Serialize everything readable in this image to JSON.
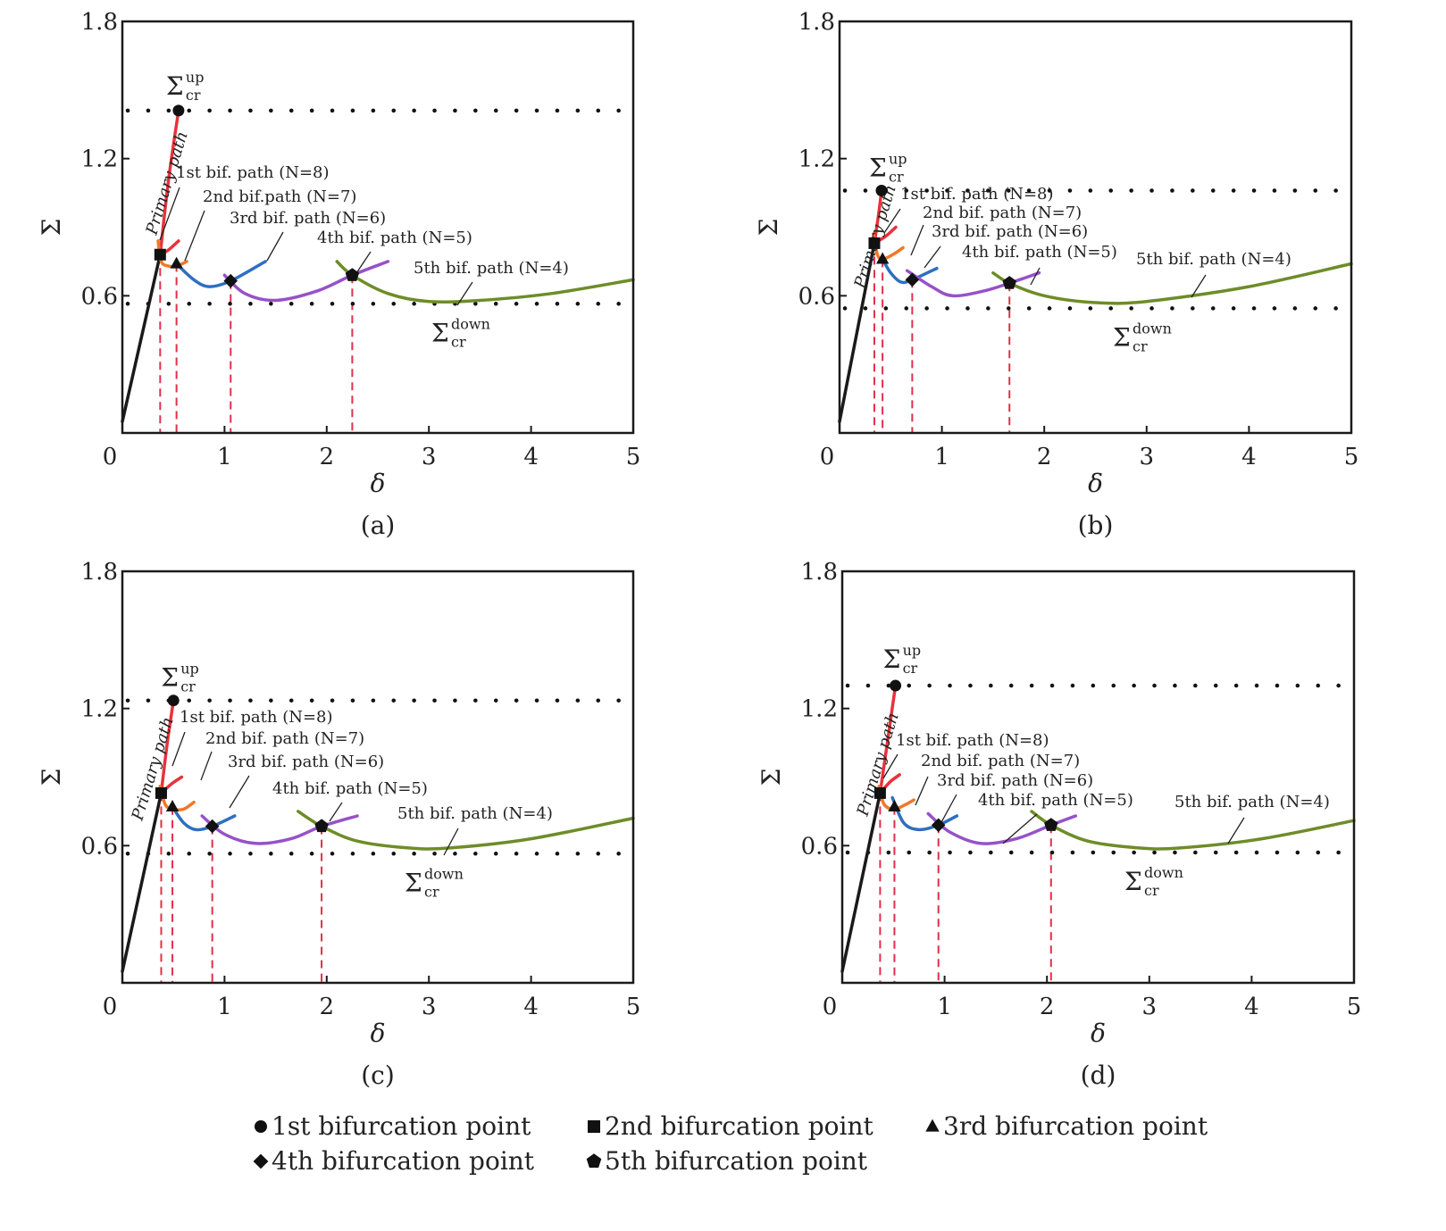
{
  "figure": {
    "legend": [
      {
        "marker": "circle",
        "label": "1st bifurcation point"
      },
      {
        "marker": "square",
        "label": "2nd bifurcation point"
      },
      {
        "marker": "triangle",
        "label": "3rd bifurcation point"
      },
      {
        "marker": "diamond",
        "label": "4th bifurcation point"
      },
      {
        "marker": "pentagon",
        "label": "5th bifurcation point"
      }
    ],
    "colors": {
      "primary": "#1a1a1a",
      "path1": "#e8323c",
      "path2": "#f07828",
      "path3": "#2e6fc0",
      "path4": "#9652c8",
      "path5": "#6e8c28",
      "dropline": "#e0304a",
      "critical": "#111111"
    },
    "annotation_labels": {
      "primary": "Primary path",
      "sigma_up_main": "Σ",
      "sigma_up_sup": "up",
      "sigma_sub": "cr",
      "sigma_down_sup": "down"
    }
  },
  "chart_data": [
    {
      "type": "line",
      "panel": "(a)",
      "xlabel": "δ",
      "ylabel": "Σ",
      "xlim": [
        0,
        5
      ],
      "ylim": [
        0,
        1.8
      ],
      "xticks": [
        "0",
        "1",
        "2",
        "3",
        "4",
        "5"
      ],
      "yticks": [
        "0.6",
        "1.2",
        "1.8"
      ],
      "sigma_up": 1.41,
      "sigma_down": 0.565,
      "bifurcation_points": [
        {
          "order": 1,
          "marker": "circle",
          "x": 0.55,
          "y": 1.41
        },
        {
          "order": 2,
          "marker": "square",
          "x": 0.37,
          "y": 0.78
        },
        {
          "order": 3,
          "marker": "triangle",
          "x": 0.53,
          "y": 0.74
        },
        {
          "order": 4,
          "marker": "diamond",
          "x": 1.06,
          "y": 0.665
        },
        {
          "order": 5,
          "marker": "pentagon",
          "x": 2.25,
          "y": 0.69
        }
      ],
      "series": [
        {
          "name": "Primary path",
          "color_key": "primary",
          "x": [
            0,
            0.37
          ],
          "y": [
            0.05,
            0.78
          ]
        },
        {
          "name": "Primary path (upper)",
          "color_key": "path1",
          "x": [
            0.37,
            0.45,
            0.55
          ],
          "y": [
            0.78,
            1.1,
            1.41
          ]
        },
        {
          "name": "1st bif. path (N=8)",
          "color_key": "path1",
          "x": [
            0.37,
            0.45,
            0.55
          ],
          "y": [
            0.78,
            0.8,
            0.84
          ]
        },
        {
          "name": "2nd bif.path (N=7)",
          "color_key": "path2",
          "x": [
            0.35,
            0.38,
            0.45,
            0.53,
            0.63
          ],
          "y": [
            0.84,
            0.75,
            0.73,
            0.73,
            0.75
          ]
        },
        {
          "name": "3rd bif. path (N=6)",
          "color_key": "path3",
          "x": [
            0.53,
            0.7,
            0.85,
            1.06,
            1.4
          ],
          "y": [
            0.74,
            0.67,
            0.64,
            0.665,
            0.75
          ]
        },
        {
          "name": "4th bif. path (N=5)",
          "color_key": "path4",
          "x": [
            1.0,
            1.2,
            1.5,
            1.9,
            2.25,
            2.6
          ],
          "y": [
            0.69,
            0.61,
            0.58,
            0.62,
            0.69,
            0.75
          ]
        },
        {
          "name": "5th bif. path (N=4)",
          "color_key": "path5",
          "x": [
            2.1,
            2.25,
            2.6,
            3.0,
            3.5,
            4.2,
            5.0
          ],
          "y": [
            0.75,
            0.69,
            0.61,
            0.575,
            0.58,
            0.61,
            0.67
          ]
        }
      ],
      "annotations": [
        {
          "text": "1st bif. path (N=8)",
          "series": 1
        },
        {
          "text": "2nd bif.path (N=7)",
          "series": 2
        },
        {
          "text": "3rd bif. path (N=6)",
          "series": 3
        },
        {
          "text": "4th bif. path (N=5)",
          "series": 4
        },
        {
          "text": "5th bif. path (N=4)",
          "series": 5
        }
      ]
    },
    {
      "type": "line",
      "panel": "(b)",
      "xlabel": "δ",
      "ylabel": "Σ",
      "xlim": [
        0,
        5
      ],
      "ylim": [
        0,
        1.8
      ],
      "xticks": [
        "0",
        "1",
        "2",
        "3",
        "4",
        "5"
      ],
      "yticks": [
        "0.6",
        "1.2",
        "1.8"
      ],
      "sigma_up": 1.06,
      "sigma_down": 0.545,
      "bifurcation_points": [
        {
          "order": 1,
          "marker": "circle",
          "x": 0.41,
          "y": 1.06
        },
        {
          "order": 2,
          "marker": "square",
          "x": 0.34,
          "y": 0.83
        },
        {
          "order": 3,
          "marker": "triangle",
          "x": 0.42,
          "y": 0.76
        },
        {
          "order": 4,
          "marker": "diamond",
          "x": 0.71,
          "y": 0.67
        },
        {
          "order": 5,
          "marker": "pentagon",
          "x": 1.66,
          "y": 0.655
        }
      ],
      "series": [
        {
          "name": "Primary path",
          "color_key": "primary",
          "x": [
            0,
            0.34
          ],
          "y": [
            0.05,
            0.83
          ]
        },
        {
          "name": "Primary path (upper)",
          "color_key": "path1",
          "x": [
            0.34,
            0.38,
            0.41
          ],
          "y": [
            0.83,
            0.95,
            1.06
          ]
        },
        {
          "name": "1st bif. path (N=8)",
          "color_key": "path1",
          "x": [
            0.34,
            0.45,
            0.55
          ],
          "y": [
            0.83,
            0.86,
            0.9
          ]
        },
        {
          "name": "2nd bif. path (N=7)",
          "color_key": "path2",
          "x": [
            0.33,
            0.37,
            0.42,
            0.52,
            0.62
          ],
          "y": [
            0.87,
            0.78,
            0.76,
            0.78,
            0.81
          ]
        },
        {
          "name": "3rd bif. path (N=6)",
          "color_key": "path3",
          "x": [
            0.42,
            0.5,
            0.6,
            0.71,
            0.95
          ],
          "y": [
            0.76,
            0.7,
            0.66,
            0.67,
            0.72
          ]
        },
        {
          "name": "4th bif. path (N=5)",
          "color_key": "path4",
          "x": [
            0.66,
            0.9,
            1.1,
            1.4,
            1.66,
            1.95
          ],
          "y": [
            0.71,
            0.64,
            0.6,
            0.62,
            0.655,
            0.7
          ]
        },
        {
          "name": "5th bif. path (N=4)",
          "color_key": "path5",
          "x": [
            1.5,
            1.66,
            2.0,
            2.5,
            3.0,
            4.0,
            5.0
          ],
          "y": [
            0.7,
            0.655,
            0.6,
            0.57,
            0.575,
            0.64,
            0.74
          ]
        }
      ],
      "annotations": [
        {
          "text": "1st bif. path (N=8)",
          "series": 1
        },
        {
          "text": "2nd bif. path (N=7)",
          "series": 2
        },
        {
          "text": "3rd bif. path (N=6)",
          "series": 3
        },
        {
          "text": "4th bif. path (N=5)",
          "series": 4
        },
        {
          "text": "5th bif. path (N=4)",
          "series": 5
        }
      ]
    },
    {
      "type": "line",
      "panel": "(c)",
      "xlabel": "δ",
      "ylabel": "Σ",
      "xlim": [
        0,
        5
      ],
      "ylim": [
        0,
        1.8
      ],
      "xticks": [
        "0",
        "1",
        "2",
        "3",
        "4",
        "5"
      ],
      "yticks": [
        "0.6",
        "1.2",
        "1.8"
      ],
      "sigma_up": 1.235,
      "sigma_down": 0.565,
      "bifurcation_points": [
        {
          "order": 1,
          "marker": "circle",
          "x": 0.5,
          "y": 1.235
        },
        {
          "order": 2,
          "marker": "square",
          "x": 0.38,
          "y": 0.83
        },
        {
          "order": 3,
          "marker": "triangle",
          "x": 0.49,
          "y": 0.77
        },
        {
          "order": 4,
          "marker": "diamond",
          "x": 0.88,
          "y": 0.685
        },
        {
          "order": 5,
          "marker": "pentagon",
          "x": 1.95,
          "y": 0.685
        }
      ],
      "series": [
        {
          "name": "Primary path",
          "color_key": "primary",
          "x": [
            0,
            0.38
          ],
          "y": [
            0.05,
            0.83
          ]
        },
        {
          "name": "Primary path (upper)",
          "color_key": "path1",
          "x": [
            0.38,
            0.44,
            0.5
          ],
          "y": [
            0.83,
            1.05,
            1.235
          ]
        },
        {
          "name": "1st bif. path (N=8)",
          "color_key": "path1",
          "x": [
            0.38,
            0.48,
            0.58
          ],
          "y": [
            0.83,
            0.87,
            0.9
          ]
        },
        {
          "name": "2nd bif. path (N=7)",
          "color_key": "path2",
          "x": [
            0.37,
            0.42,
            0.49,
            0.6,
            0.7
          ],
          "y": [
            0.86,
            0.78,
            0.76,
            0.76,
            0.79
          ]
        },
        {
          "name": "3rd bif. path (N=6)",
          "color_key": "path3",
          "x": [
            0.49,
            0.6,
            0.72,
            0.88,
            1.1
          ],
          "y": [
            0.77,
            0.7,
            0.67,
            0.685,
            0.73
          ]
        },
        {
          "name": "4th bif. path (N=5)",
          "color_key": "path4",
          "x": [
            0.78,
            1.0,
            1.3,
            1.65,
            1.95,
            2.3
          ],
          "y": [
            0.73,
            0.65,
            0.61,
            0.63,
            0.685,
            0.73
          ]
        },
        {
          "name": "5th bif. path (N=4)",
          "color_key": "path5",
          "x": [
            1.72,
            1.95,
            2.3,
            2.8,
            3.2,
            4.0,
            5.0
          ],
          "y": [
            0.75,
            0.685,
            0.62,
            0.59,
            0.59,
            0.63,
            0.72
          ]
        }
      ],
      "annotations": [
        {
          "text": "1st bif. path (N=8)",
          "series": 1
        },
        {
          "text": "2nd bif. path (N=7)",
          "series": 2
        },
        {
          "text": "3rd bif. path (N=6)",
          "series": 3
        },
        {
          "text": "4th bif. path (N=5)",
          "series": 4
        },
        {
          "text": "5th bif. path (N=4)",
          "series": 5
        }
      ]
    },
    {
      "type": "line",
      "panel": "(d)",
      "xlabel": "δ",
      "ylabel": "Σ",
      "xlim": [
        0,
        5
      ],
      "ylim": [
        0,
        1.8
      ],
      "xticks": [
        "0",
        "1",
        "2",
        "3",
        "4",
        "5"
      ],
      "yticks": [
        "0.6",
        "1.2",
        "1.8"
      ],
      "sigma_up": 1.3,
      "sigma_down": 0.57,
      "bifurcation_points": [
        {
          "order": 1,
          "marker": "circle",
          "x": 0.52,
          "y": 1.3
        },
        {
          "order": 2,
          "marker": "square",
          "x": 0.37,
          "y": 0.83
        },
        {
          "order": 3,
          "marker": "triangle",
          "x": 0.51,
          "y": 0.77
        },
        {
          "order": 4,
          "marker": "diamond",
          "x": 0.94,
          "y": 0.69
        },
        {
          "order": 5,
          "marker": "pentagon",
          "x": 2.04,
          "y": 0.69
        }
      ],
      "series": [
        {
          "name": "Primary path",
          "color_key": "primary",
          "x": [
            0,
            0.37
          ],
          "y": [
            0.05,
            0.83
          ]
        },
        {
          "name": "Primary path (upper)",
          "color_key": "path1",
          "x": [
            0.37,
            0.45,
            0.52
          ],
          "y": [
            0.83,
            1.08,
            1.3
          ]
        },
        {
          "name": "1st bif. path (N=8)",
          "color_key": "path1",
          "x": [
            0.37,
            0.47,
            0.56
          ],
          "y": [
            0.83,
            0.88,
            0.91
          ]
        },
        {
          "name": "2nd bif. path (N=7)",
          "color_key": "path2",
          "x": [
            0.36,
            0.41,
            0.51,
            0.62,
            0.7
          ],
          "y": [
            0.86,
            0.78,
            0.76,
            0.78,
            0.8
          ]
        },
        {
          "name": "3rd bif. path (N=6)",
          "color_key": "path3",
          "x": [
            0.49,
            0.6,
            0.75,
            0.94,
            1.12
          ],
          "y": [
            0.81,
            0.7,
            0.67,
            0.69,
            0.73
          ]
        },
        {
          "name": "4th bif. path (N=5)",
          "color_key": "path4",
          "x": [
            0.84,
            1.05,
            1.35,
            1.7,
            2.04,
            2.28
          ],
          "y": [
            0.74,
            0.66,
            0.61,
            0.63,
            0.69,
            0.73
          ]
        },
        {
          "name": "5th bif. path (N=4)",
          "color_key": "path5",
          "x": [
            1.85,
            2.04,
            2.4,
            2.9,
            3.3,
            4.1,
            5.0
          ],
          "y": [
            0.75,
            0.69,
            0.62,
            0.59,
            0.59,
            0.63,
            0.71
          ]
        }
      ],
      "annotations": [
        {
          "text": "1st bif. path (N=8)",
          "series": 1
        },
        {
          "text": "2nd bif. path (N=7)",
          "series": 2
        },
        {
          "text": "3rd bif. path (N=6)",
          "series": 3
        },
        {
          "text": "4th bif. path (N=5)",
          "series": 4
        },
        {
          "text": "5th bif. path (N=4)",
          "series": 5
        }
      ]
    }
  ]
}
